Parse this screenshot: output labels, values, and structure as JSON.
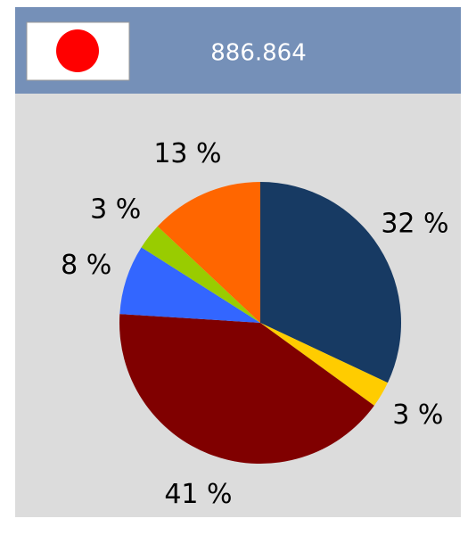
{
  "header_text": "886.864",
  "chart_data": {
    "type": "pie",
    "values": [
      32,
      3,
      41,
      8,
      3,
      13
    ],
    "value_labels": [
      "32 %",
      "3 %",
      "41 %",
      "8 %",
      "3 %",
      "13 %"
    ],
    "colors": [
      "#173a63",
      "#ffcc00",
      "#800000",
      "#3366ff",
      "#99cc00",
      "#ff6600"
    ]
  }
}
